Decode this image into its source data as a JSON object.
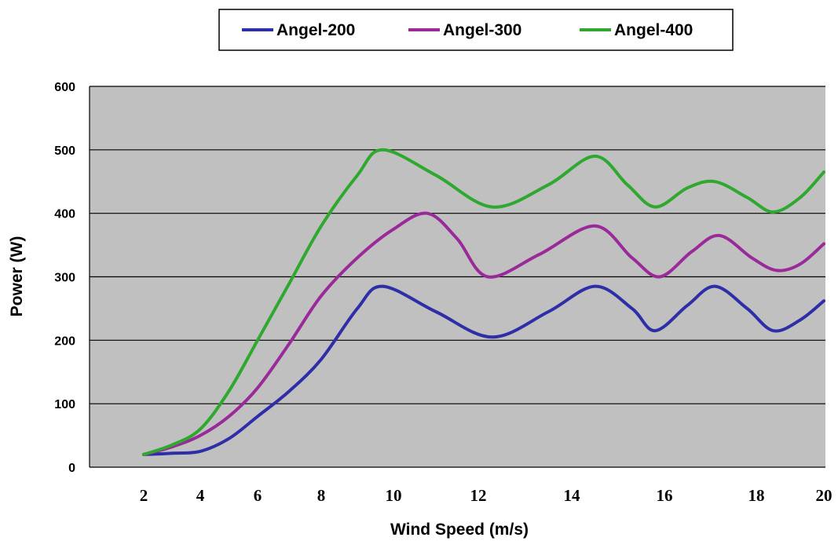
{
  "chart_data": {
    "type": "line",
    "xlabel": "Wind Speed (m/s)",
    "ylabel": "Power (W)",
    "xlim": [
      2,
      20
    ],
    "ylim": [
      0,
      600
    ],
    "x_ticks": [
      "2",
      "4",
      "6",
      "8",
      "10",
      "12",
      "14",
      "16",
      "18",
      "20"
    ],
    "y_ticks": [
      "0",
      "100",
      "200",
      "300",
      "400",
      "500",
      "600"
    ],
    "grid": "horizontal",
    "legend_position": "top",
    "plot_background": "#c0c0c0",
    "series": [
      {
        "name": "Angel-200",
        "color": "#2e2ea8",
        "x": [
          2,
          3,
          4,
          5,
          6,
          7,
          8,
          9,
          9.7,
          11,
          12.3,
          13.5,
          14.5,
          15.3,
          15.8,
          16.5,
          17.1,
          17.8,
          18.5,
          19.3,
          20
        ],
        "y": [
          20,
          22,
          25,
          45,
          80,
          120,
          170,
          250,
          285,
          245,
          205,
          245,
          285,
          250,
          215,
          255,
          285,
          250,
          215,
          232,
          262
        ]
      },
      {
        "name": "Angel-300",
        "color": "#9a2a9a",
        "x": [
          2,
          3,
          4,
          5,
          6,
          7,
          8,
          9,
          10,
          10.8,
          11.5,
          12.2,
          13.3,
          14.5,
          15.3,
          15.9,
          16.6,
          17.2,
          17.9,
          18.6,
          19.3,
          20
        ],
        "y": [
          20,
          32,
          50,
          80,
          125,
          195,
          270,
          330,
          375,
          400,
          360,
          300,
          335,
          380,
          330,
          300,
          340,
          365,
          330,
          310,
          320,
          352
        ]
      },
      {
        "name": "Angel-400",
        "color": "#2ea82e",
        "x": [
          2,
          3,
          4,
          5,
          6,
          7,
          8,
          9,
          9.7,
          11,
          12.3,
          13.5,
          14.5,
          15.2,
          15.8,
          16.5,
          17.1,
          17.8,
          18.5,
          19.3,
          20
        ],
        "y": [
          20,
          35,
          60,
          120,
          200,
          290,
          380,
          460,
          500,
          460,
          410,
          445,
          490,
          445,
          410,
          440,
          450,
          425,
          402,
          425,
          465
        ]
      }
    ]
  }
}
